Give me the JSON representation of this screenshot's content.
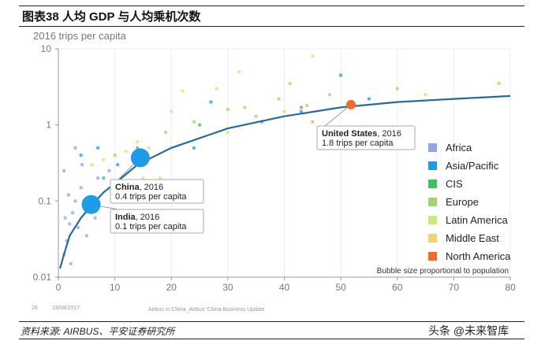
{
  "title": "图表38    人均 GDP 与人均乘机次数",
  "footer": {
    "page": "26",
    "date": "19/09/2017",
    "doc": "Airbus in China_Airbus' China Business Update"
  },
  "source": "资料来源: AIRBUS、平安证券研究所",
  "watermark": "头条 @未来智库",
  "chart_data": {
    "type": "scatter",
    "ylabel": "2016 trips per capita",
    "xlim": [
      0,
      80
    ],
    "ylim": [
      0.01,
      10
    ],
    "yscale": "log",
    "xticks": [
      "0",
      "10",
      "20",
      "30",
      "40",
      "50",
      "60",
      "70",
      "80"
    ],
    "yticks": [
      "0.01",
      "0.1",
      "1",
      "10"
    ],
    "grid": "vertical",
    "legend_position": "right",
    "note": "Bubble size proportional to population",
    "legend": [
      {
        "name": "Africa",
        "color": "#8fa4ee"
      },
      {
        "name": "Asia/Pacific",
        "color": "#1e9be6"
      },
      {
        "name": "CIS",
        "color": "#3cc25a"
      },
      {
        "name": "Europe",
        "color": "#9ed86a"
      },
      {
        "name": "Latin America",
        "color": "#c8ec7a"
      },
      {
        "name": "Middle East",
        "color": "#f2d46a"
      },
      {
        "name": "North America",
        "color": "#f26b2a"
      }
    ],
    "trend": {
      "color": "#2a6a9a",
      "x": [
        0.3,
        1,
        2,
        4,
        6,
        8,
        10,
        14,
        20,
        30,
        40,
        50,
        60,
        70,
        80
      ],
      "y": [
        0.013,
        0.02,
        0.035,
        0.06,
        0.09,
        0.13,
        0.17,
        0.3,
        0.5,
        0.9,
        1.3,
        1.7,
        2.0,
        2.2,
        2.4
      ]
    },
    "highlights": [
      {
        "name": "India",
        "label_bold": "India",
        "label_year": ", 2016",
        "sub": "0.1 trips per capita",
        "x": 5.8,
        "y": 0.09,
        "region": "Asia/Pacific",
        "size": 12
      },
      {
        "name": "China",
        "label_bold": "China",
        "label_year": ", 2016",
        "sub": "0.4 trips per capita",
        "x": 14.5,
        "y": 0.37,
        "region": "Asia/Pacific",
        "size": 12
      },
      {
        "name": "United States",
        "label_bold": "United States",
        "label_year": ", 2016",
        "sub": "1.8 trips per capita",
        "x": 51.8,
        "y": 1.85,
        "region": "North America",
        "size": 6
      }
    ],
    "points": [
      {
        "x": 1,
        "y": 0.02,
        "r": "Africa"
      },
      {
        "x": 1.5,
        "y": 0.03,
        "r": "Africa"
      },
      {
        "x": 2,
        "y": 0.05,
        "r": "Africa"
      },
      {
        "x": 1.2,
        "y": 0.06,
        "r": "Africa"
      },
      {
        "x": 2.5,
        "y": 0.07,
        "r": "Africa"
      },
      {
        "x": 3,
        "y": 0.1,
        "r": "Africa"
      },
      {
        "x": 1.8,
        "y": 0.12,
        "r": "Africa"
      },
      {
        "x": 3.5,
        "y": 0.045,
        "r": "Africa"
      },
      {
        "x": 5,
        "y": 0.035,
        "r": "Africa"
      },
      {
        "x": 2.2,
        "y": 0.015,
        "r": "Africa"
      },
      {
        "x": 4,
        "y": 0.15,
        "r": "Africa"
      },
      {
        "x": 6.5,
        "y": 0.06,
        "r": "Africa"
      },
      {
        "x": 1,
        "y": 0.25,
        "r": "Africa"
      },
      {
        "x": 4.2,
        "y": 0.3,
        "r": "Africa"
      },
      {
        "x": 7,
        "y": 0.2,
        "r": "Africa"
      },
      {
        "x": 9,
        "y": 0.25,
        "r": "Africa"
      },
      {
        "x": 11,
        "y": 0.1,
        "r": "Africa"
      },
      {
        "x": 3,
        "y": 0.5,
        "r": "Africa"
      },
      {
        "x": 7,
        "y": 0.5,
        "r": "Asia/Pacific"
      },
      {
        "x": 10.5,
        "y": 0.3,
        "r": "Asia/Pacific"
      },
      {
        "x": 4,
        "y": 0.4,
        "r": "Asia/Pacific"
      },
      {
        "x": 24,
        "y": 0.5,
        "r": "Asia/Pacific"
      },
      {
        "x": 36,
        "y": 1.1,
        "r": "Asia/Pacific"
      },
      {
        "x": 43,
        "y": 1.5,
        "r": "Asia/Pacific"
      },
      {
        "x": 55,
        "y": 2.2,
        "r": "Asia/Pacific"
      },
      {
        "x": 50,
        "y": 4.5,
        "r": "Asia/Pacific"
      },
      {
        "x": 27,
        "y": 2,
        "r": "Asia/Pacific"
      },
      {
        "x": 8,
        "y": 0.2,
        "r": "CIS"
      },
      {
        "x": 10,
        "y": 0.4,
        "r": "CIS"
      },
      {
        "x": 14,
        "y": 0.5,
        "r": "CIS"
      },
      {
        "x": 25,
        "y": 1,
        "r": "CIS"
      },
      {
        "x": 13,
        "y": 0.15,
        "r": "CIS"
      },
      {
        "x": 19,
        "y": 0.8,
        "r": "Europe"
      },
      {
        "x": 24,
        "y": 1.1,
        "r": "Europe"
      },
      {
        "x": 30,
        "y": 1.6,
        "r": "Europe"
      },
      {
        "x": 33,
        "y": 1.7,
        "r": "Europe"
      },
      {
        "x": 39,
        "y": 2.2,
        "r": "Europe"
      },
      {
        "x": 44,
        "y": 1.8,
        "r": "Europe"
      },
      {
        "x": 45,
        "y": 1.1,
        "r": "Europe"
      },
      {
        "x": 48,
        "y": 2.5,
        "r": "Europe"
      },
      {
        "x": 41,
        "y": 3.5,
        "r": "Europe"
      },
      {
        "x": 60,
        "y": 3,
        "r": "Europe"
      },
      {
        "x": 78,
        "y": 3.5,
        "r": "Europe"
      },
      {
        "x": 35,
        "y": 1.3,
        "r": "Europe"
      },
      {
        "x": 10,
        "y": 0.4,
        "r": "Latin America"
      },
      {
        "x": 12,
        "y": 0.45,
        "r": "Latin America"
      },
      {
        "x": 15,
        "y": 0.2,
        "r": "Latin America"
      },
      {
        "x": 16,
        "y": 0.5,
        "r": "Latin America"
      },
      {
        "x": 20,
        "y": 1.5,
        "r": "Latin America"
      },
      {
        "x": 8,
        "y": 0.35,
        "r": "Latin America"
      },
      {
        "x": 22,
        "y": 2.8,
        "r": "Latin America"
      },
      {
        "x": 32,
        "y": 5,
        "r": "Latin America"
      },
      {
        "x": 45,
        "y": 8,
        "r": "Latin America"
      },
      {
        "x": 6,
        "y": 0.3,
        "r": "Latin America"
      },
      {
        "x": 15,
        "y": 0.15,
        "r": "Middle East"
      },
      {
        "x": 18,
        "y": 0.2,
        "r": "Middle East"
      },
      {
        "x": 14,
        "y": 0.6,
        "r": "Middle East"
      },
      {
        "x": 30,
        "y": 0.8,
        "r": "Middle East"
      },
      {
        "x": 40,
        "y": 1.5,
        "r": "Middle East"
      },
      {
        "x": 65,
        "y": 2.5,
        "r": "Middle East"
      },
      {
        "x": 28,
        "y": 3,
        "r": "Middle East"
      },
      {
        "x": 43,
        "y": 1.7,
        "r": "North America"
      }
    ]
  }
}
